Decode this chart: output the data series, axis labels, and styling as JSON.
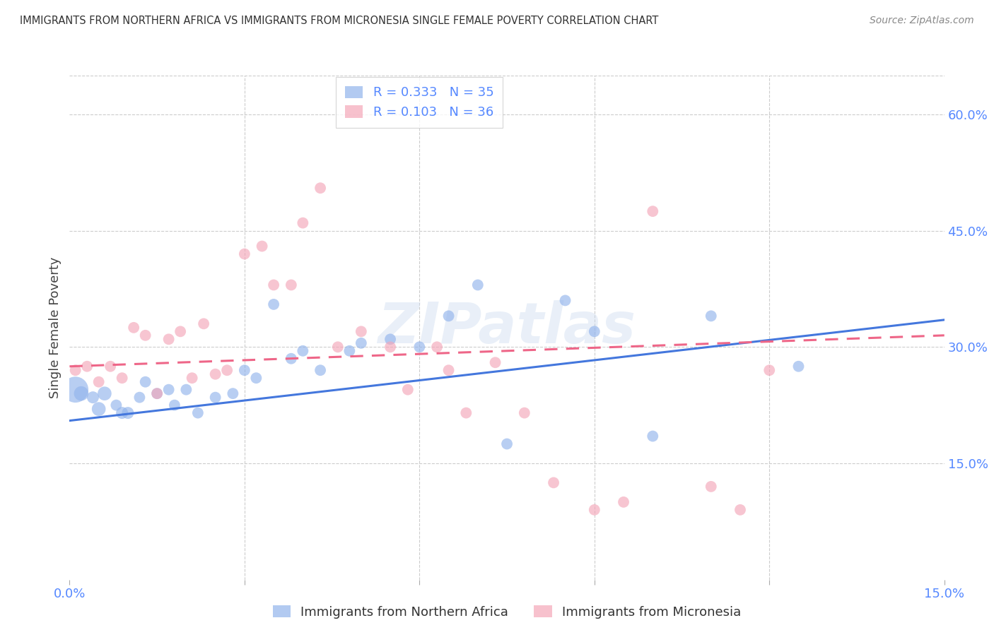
{
  "title": "IMMIGRANTS FROM NORTHERN AFRICA VS IMMIGRANTS FROM MICRONESIA SINGLE FEMALE POVERTY CORRELATION CHART",
  "source": "Source: ZipAtlas.com",
  "ylabel": "Single Female Poverty",
  "legend_label1": "R = 0.333   N = 35",
  "legend_label2": "R = 0.103   N = 36",
  "legend_label3": "Immigrants from Northern Africa",
  "legend_label4": "Immigrants from Micronesia",
  "xlim": [
    0,
    0.15
  ],
  "ylim": [
    0,
    0.65
  ],
  "yticks": [
    0.15,
    0.3,
    0.45,
    0.6
  ],
  "ytick_labels": [
    "15.0%",
    "30.0%",
    "45.0%",
    "60.0%"
  ],
  "xticks": [
    0.0,
    0.03,
    0.06,
    0.09,
    0.12,
    0.15
  ],
  "xtick_labels": [
    "0.0%",
    "",
    "",
    "",
    "",
    "15.0%"
  ],
  "blue_color": "#92B4EC",
  "pink_color": "#F4A7B9",
  "blue_line_color": "#4477DD",
  "pink_line_color": "#EE6688",
  "title_color": "#333333",
  "axis_label_color": "#444444",
  "tick_color": "#5588FF",
  "watermark": "ZIPatlas",
  "blue_x": [
    0.001,
    0.002,
    0.004,
    0.005,
    0.006,
    0.008,
    0.009,
    0.01,
    0.012,
    0.013,
    0.015,
    0.017,
    0.018,
    0.02,
    0.022,
    0.025,
    0.028,
    0.03,
    0.032,
    0.035,
    0.038,
    0.04,
    0.043,
    0.048,
    0.05,
    0.055,
    0.06,
    0.065,
    0.07,
    0.075,
    0.085,
    0.09,
    0.1,
    0.11,
    0.125
  ],
  "blue_y": [
    0.245,
    0.24,
    0.235,
    0.22,
    0.24,
    0.225,
    0.215,
    0.215,
    0.235,
    0.255,
    0.24,
    0.245,
    0.225,
    0.245,
    0.215,
    0.235,
    0.24,
    0.27,
    0.26,
    0.355,
    0.285,
    0.295,
    0.27,
    0.295,
    0.305,
    0.31,
    0.3,
    0.34,
    0.38,
    0.175,
    0.36,
    0.32,
    0.185,
    0.34,
    0.275
  ],
  "blue_sizes": [
    700,
    220,
    150,
    200,
    200,
    130,
    150,
    150,
    130,
    130,
    130,
    130,
    130,
    130,
    130,
    130,
    130,
    130,
    130,
    130,
    130,
    130,
    130,
    130,
    130,
    130,
    130,
    130,
    130,
    130,
    130,
    130,
    130,
    130,
    130
  ],
  "pink_x": [
    0.001,
    0.003,
    0.005,
    0.007,
    0.009,
    0.011,
    0.013,
    0.015,
    0.017,
    0.019,
    0.021,
    0.023,
    0.025,
    0.027,
    0.03,
    0.033,
    0.035,
    0.038,
    0.04,
    0.043,
    0.046,
    0.05,
    0.055,
    0.058,
    0.063,
    0.065,
    0.068,
    0.073,
    0.078,
    0.083,
    0.09,
    0.095,
    0.1,
    0.11,
    0.115,
    0.12
  ],
  "pink_y": [
    0.27,
    0.275,
    0.255,
    0.275,
    0.26,
    0.325,
    0.315,
    0.24,
    0.31,
    0.32,
    0.26,
    0.33,
    0.265,
    0.27,
    0.42,
    0.43,
    0.38,
    0.38,
    0.46,
    0.505,
    0.3,
    0.32,
    0.3,
    0.245,
    0.3,
    0.27,
    0.215,
    0.28,
    0.215,
    0.125,
    0.09,
    0.1,
    0.475,
    0.12,
    0.09,
    0.27
  ],
  "pink_sizes": [
    130,
    130,
    130,
    130,
    130,
    130,
    130,
    130,
    130,
    130,
    130,
    130,
    130,
    130,
    130,
    130,
    130,
    130,
    130,
    130,
    130,
    130,
    130,
    130,
    130,
    130,
    130,
    130,
    130,
    130,
    130,
    130,
    130,
    130,
    130,
    130
  ],
  "blue_trend_x": [
    0.0,
    0.15
  ],
  "blue_trend_y": [
    0.205,
    0.335
  ],
  "pink_trend_x": [
    0.0,
    0.15
  ],
  "pink_trend_y": [
    0.275,
    0.315
  ]
}
